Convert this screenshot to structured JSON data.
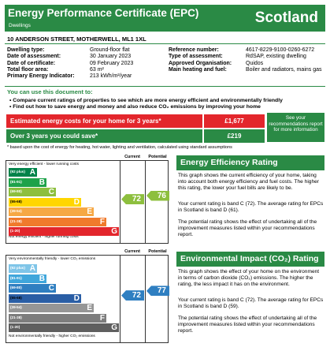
{
  "header": {
    "title": "Energy Performance Certificate (EPC)",
    "subtitle": "Dwellings",
    "country": "Scotland"
  },
  "address": "10 ANDERSON STREET, MOTHERWELL, ML1 1XL",
  "left_info": [
    {
      "label": "Dwelling type:",
      "value": "Ground-floor flat"
    },
    {
      "label": "Date of assessment:",
      "value": "30 January 2023"
    },
    {
      "label": "Date of certificate:",
      "value": "09 February 2023"
    },
    {
      "label": "Total floor area:",
      "value": "63 m²"
    },
    {
      "label": "Primary Energy Indicator:",
      "value": "213 kWh/m²/year"
    }
  ],
  "right_info": [
    {
      "label": "Reference number:",
      "value": "4617-8229-9100-0260-6272"
    },
    {
      "label": "Type of assessment:",
      "value": "RdSAP, existing dwelling"
    },
    {
      "label": "Approved Organisation:",
      "value": "Quidos"
    },
    {
      "label": "Main heating and fuel:",
      "value": "Boiler and radiators, mains gas"
    }
  ],
  "use_doc": {
    "heading": "You can use this document to:",
    "bullets": [
      "Compare current ratings of properties to see which are more energy efficient and environmentally friendly",
      "Find out how to save energy and money and also reduce CO₂ emissions by improving your home"
    ]
  },
  "costs": {
    "estimated_label": "Estimated energy costs for your home for 3 years*",
    "estimated_value": "£1,677",
    "save_label": "Over 3 years you could save*",
    "save_value": "£219",
    "see_text": "See your recommendations report for more information",
    "footnote": "* based upon the cost of energy for heating, hot water, lighting and ventilation, calculated using standard assumptions"
  },
  "eer_chart": {
    "current_label": "Current",
    "potential_label": "Potential",
    "top_text": "Very energy efficient - lower running costs",
    "bottom_text": "Not energy efficient - higher running costs",
    "bands": [
      {
        "range": "(92 plus)",
        "letter": "A",
        "color": "#00834a"
      },
      {
        "range": "(81-91)",
        "letter": "B",
        "color": "#1ea24a"
      },
      {
        "range": "(69-80)",
        "letter": "C",
        "color": "#8dbf3e"
      },
      {
        "range": "(55-68)",
        "letter": "D",
        "color": "#ffd600"
      },
      {
        "range": "(39-54)",
        "letter": "E",
        "color": "#f6a844"
      },
      {
        "range": "(21-38)",
        "letter": "F",
        "color": "#f07a2c"
      },
      {
        "range": "(1-20)",
        "letter": "G",
        "color": "#e3262c"
      }
    ],
    "current": 72,
    "current_color": "#8dbf3e",
    "potential": 76,
    "potential_color": "#8dbf3e"
  },
  "eir_chart": {
    "current_label": "Current",
    "potential_label": "Potential",
    "top_text": "Very environmentally friendly - lower CO₂ emissions",
    "bottom_text": "Not environmentally friendly - higher CO₂ emissions",
    "bands": [
      {
        "range": "(92 plus)",
        "letter": "A",
        "color": "#7fc5e8"
      },
      {
        "range": "(81-91)",
        "letter": "B",
        "color": "#3fa6db"
      },
      {
        "range": "(69-80)",
        "letter": "C",
        "color": "#2f7fc1"
      },
      {
        "range": "(55-68)",
        "letter": "D",
        "color": "#2a5ea5"
      },
      {
        "range": "(39-54)",
        "letter": "E",
        "color": "#969696"
      },
      {
        "range": "(21-38)",
        "letter": "F",
        "color": "#7d7d7d"
      },
      {
        "range": "(1-20)",
        "letter": "G",
        "color": "#5f5f5f"
      }
    ],
    "current": 72,
    "current_color": "#2f7fc1",
    "potential": 77,
    "potential_color": "#2f7fc1"
  },
  "eer_section": {
    "title": "Energy Efficiency Rating",
    "p1": "This graph shows the current efficiency of your home, taking into account both energy efficiency and fuel costs. The higher this rating, the lower your fuel bills are likely to be.",
    "p2": "Your current rating is band C (72). The average rating for EPCs in Scotland is band D (61).",
    "p3": "The potential rating shows the effect of undertaking all of the improvement measures listed within your recommendations report."
  },
  "eir_section": {
    "title": "Environmental Impact (CO₂) Rating",
    "p1": "This graph shows the effect of your home on the environment in terms of carbon dioxide (CO₂) emissions. The higher the rating, the less impact it has on the environment.",
    "p2": "Your current rating is band C (72). The average rating for EPCs in Scotland is band D (59).",
    "p3": "The potential rating shows the effect of undertaking all of the improvement measures listed within your recommendations report."
  }
}
